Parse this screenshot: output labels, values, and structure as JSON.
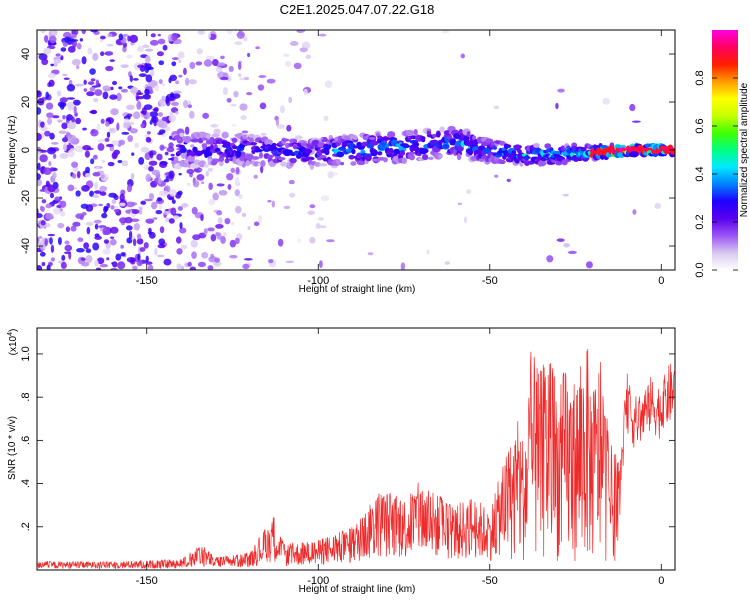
{
  "figure_title": "C2E1.2025.047.07.22.G18",
  "chart_data": [
    {
      "type": "heatmap",
      "title": "C2E1.2025.047.07.22.G18",
      "xlabel": "Height of straight line (km)",
      "ylabel": "Frequency (Hz)",
      "xlim": [
        -182,
        4
      ],
      "ylim": [
        -50,
        50
      ],
      "xticks": [
        -150,
        -100,
        -50,
        0
      ],
      "yticks": [
        -40,
        -20,
        0,
        20,
        40
      ],
      "colorbar": {
        "label": "Normalized spectral amplitude",
        "range": [
          0,
          1
        ],
        "ticks": [
          0.0,
          0.2,
          0.4,
          0.6,
          0.8
        ],
        "colormap": [
          "#ffffff",
          "#d9c8f0",
          "#9b55f5",
          "#5a00ee",
          "#2000ff",
          "#0080ff",
          "#00e8ff",
          "#00ff80",
          "#40ff00",
          "#c8ff00",
          "#ffff00",
          "#ff9900",
          "#ff1e00",
          "#ff0060",
          "#ff00e0"
        ]
      },
      "band": {
        "description": "Signal band near 0 Hz narrowing toward 0 km height; noise dominates below -135 km",
        "points": [
          {
            "x": -140,
            "center": 0,
            "halfwidth": 7,
            "amp": 0.28
          },
          {
            "x": -120,
            "center": 0,
            "halfwidth": 6,
            "amp": 0.3
          },
          {
            "x": -100,
            "center": -1,
            "halfwidth": 6,
            "amp": 0.3
          },
          {
            "x": -90,
            "center": 0,
            "halfwidth": 6,
            "amp": 0.4
          },
          {
            "x": -80,
            "center": 1,
            "halfwidth": 6,
            "amp": 0.4
          },
          {
            "x": -70,
            "center": 2,
            "halfwidth": 6,
            "amp": 0.35
          },
          {
            "x": -60,
            "center": 3,
            "halfwidth": 6,
            "amp": 0.38
          },
          {
            "x": -50,
            "center": 0,
            "halfwidth": 5,
            "amp": 0.35
          },
          {
            "x": -40,
            "center": -2,
            "halfwidth": 4,
            "amp": 0.4
          },
          {
            "x": -30,
            "center": -2,
            "halfwidth": 4,
            "amp": 0.42
          },
          {
            "x": -20,
            "center": -1,
            "halfwidth": 3,
            "amp": 0.5
          },
          {
            "x": -10,
            "center": 0,
            "halfwidth": 2,
            "amp": 0.9
          },
          {
            "x": 0,
            "center": 0,
            "halfwidth": 2,
            "amp": 0.9
          },
          {
            "x": 4,
            "center": 0,
            "halfwidth": 2,
            "amp": 0.7
          }
        ]
      }
    },
    {
      "type": "line",
      "xlabel": "Height of straight line (km)",
      "ylabel": "SNR (10 * v/v)",
      "y_multiplier_label": "(x10",
      "y_multiplier_exponent": "4",
      "y_multiplier_suffix": ")",
      "xlim": [
        -182,
        4
      ],
      "ylim": [
        0,
        1.12
      ],
      "xticks": [
        -150,
        -100,
        -50,
        0
      ],
      "yticks": [
        0.2,
        0.4,
        0.6,
        0.8,
        1.0
      ],
      "color": "#ee2a2a",
      "series": [
        {
          "name": "SNR envelope",
          "x": [
            -182,
            -170,
            -160,
            -150,
            -140,
            -134,
            -130,
            -120,
            -113,
            -110,
            -100,
            -90,
            -82,
            -75,
            -70,
            -66,
            -60,
            -55,
            -50,
            -45,
            -42,
            -40,
            -38,
            -35,
            -33,
            -30,
            -28,
            -25,
            -22,
            -20,
            -18,
            -15,
            -12,
            -10,
            -8,
            -5,
            -3,
            0,
            2,
            4
          ],
          "y": [
            0.04,
            0.04,
            0.04,
            0.045,
            0.05,
            0.12,
            0.06,
            0.08,
            0.26,
            0.12,
            0.14,
            0.2,
            0.38,
            0.34,
            0.42,
            0.36,
            0.3,
            0.35,
            0.28,
            0.55,
            0.7,
            0.62,
            1.02,
            0.92,
            1.08,
            0.86,
            0.95,
            0.9,
            1.1,
            0.85,
            1.0,
            0.6,
            0.5,
            0.92,
            0.8,
            0.84,
            0.9,
            0.86,
            0.95,
            0.98
          ]
        }
      ]
    }
  ]
}
